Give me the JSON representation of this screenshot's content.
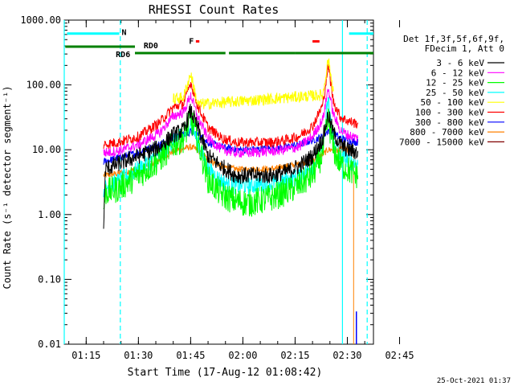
{
  "chart_data": {
    "type": "line",
    "title": "RHESSI Count Rates",
    "xlabel": "Start Time (17-Aug-12 01:08:42)",
    "ylabel": "Count Rate (s⁻¹ detector segment⁻¹)",
    "y_scale": "log",
    "ylim": [
      0.01,
      1000
    ],
    "xlim_minutes_after_01_00": [
      8.7,
      97.5
    ],
    "x_ticks": [
      {
        "t": 15,
        "label": "01:15"
      },
      {
        "t": 30,
        "label": "01:30"
      },
      {
        "t": 45,
        "label": "01:45"
      },
      {
        "t": 60,
        "label": "02:00"
      },
      {
        "t": 75,
        "label": "02:15"
      },
      {
        "t": 90,
        "label": "02:30"
      },
      {
        "t": 105,
        "label": "02:45"
      }
    ],
    "y_ticks": [
      {
        "v": 0.01,
        "label": "0.01"
      },
      {
        "v": 0.1,
        "label": "0.10"
      },
      {
        "v": 1,
        "label": "1.00"
      },
      {
        "v": 10,
        "label": "10.00"
      },
      {
        "v": 100,
        "label": "100.00"
      },
      {
        "v": 1000,
        "label": "1000.00"
      }
    ],
    "legend_header": [
      "Det 1f,3f,5f,6f,9f,",
      "FDecim 1, Att 0"
    ],
    "legend_position": "right",
    "series": [
      {
        "name": "3 - 6 keV",
        "color": "#000000",
        "values": [
          [
            20,
            0.6
          ],
          [
            20.5,
            5
          ],
          [
            24,
            6
          ],
          [
            30,
            8
          ],
          [
            36,
            11
          ],
          [
            40,
            17
          ],
          [
            43,
            20
          ],
          [
            45,
            40
          ],
          [
            47,
            22
          ],
          [
            50,
            8
          ],
          [
            54,
            5.5
          ],
          [
            58,
            4
          ],
          [
            62,
            4
          ],
          [
            68,
            4
          ],
          [
            72,
            4.5
          ],
          [
            76,
            5.5
          ],
          [
            80,
            8
          ],
          [
            83,
            15
          ],
          [
            84.5,
            35
          ],
          [
            86,
            18
          ],
          [
            88,
            12
          ],
          [
            90,
            10
          ],
          [
            93,
            9
          ]
        ]
      },
      {
        "name": "6 - 12 keV",
        "color": "#ff00ff",
        "values": [
          [
            20,
            9
          ],
          [
            24,
            9.5
          ],
          [
            30,
            12
          ],
          [
            36,
            18
          ],
          [
            40,
            33
          ],
          [
            43,
            38
          ],
          [
            45,
            70
          ],
          [
            47,
            32
          ],
          [
            50,
            15
          ],
          [
            54,
            10
          ],
          [
            58,
            9
          ],
          [
            62,
            9
          ],
          [
            68,
            9.5
          ],
          [
            72,
            10
          ],
          [
            76,
            11
          ],
          [
            80,
            16
          ],
          [
            83,
            30
          ],
          [
            84.5,
            90
          ],
          [
            86,
            35
          ],
          [
            88,
            20
          ],
          [
            90,
            17
          ],
          [
            93,
            15
          ]
        ]
      },
      {
        "name": "12 - 25 keV",
        "color": "#00ff00",
        "values": [
          [
            20,
            1.2
          ],
          [
            20.5,
            2.2
          ],
          [
            24,
            2.5
          ],
          [
            30,
            4
          ],
          [
            36,
            7
          ],
          [
            40,
            12
          ],
          [
            43,
            15
          ],
          [
            45,
            30
          ],
          [
            47,
            14
          ],
          [
            50,
            3.5
          ],
          [
            54,
            2
          ],
          [
            58,
            1.6
          ],
          [
            62,
            1.5
          ],
          [
            68,
            1.8
          ],
          [
            72,
            2.2
          ],
          [
            76,
            2.8
          ],
          [
            80,
            4
          ],
          [
            83,
            9
          ],
          [
            84.5,
            30
          ],
          [
            86,
            10
          ],
          [
            88,
            6
          ],
          [
            90,
            5
          ],
          [
            93,
            4
          ]
        ]
      },
      {
        "name": "25 - 50 keV",
        "color": "#00ffff",
        "values": [
          [
            20,
            2.5
          ],
          [
            24,
            3.2
          ],
          [
            30,
            5
          ],
          [
            36,
            8
          ],
          [
            40,
            14
          ],
          [
            43,
            16
          ],
          [
            45,
            28
          ],
          [
            47,
            13
          ],
          [
            50,
            5
          ],
          [
            54,
            3.2
          ],
          [
            58,
            2.8
          ],
          [
            62,
            2.8
          ],
          [
            68,
            3
          ],
          [
            72,
            3.3
          ],
          [
            76,
            3.8
          ],
          [
            80,
            5.5
          ],
          [
            83,
            12
          ],
          [
            84.5,
            60
          ],
          [
            86,
            14
          ],
          [
            88,
            8
          ],
          [
            90,
            7
          ],
          [
            93,
            6
          ]
        ]
      },
      {
        "name": "50 - 100 keV",
        "color": "#ffff00",
        "values": [
          [
            40,
            60
          ],
          [
            43,
            65
          ],
          [
            45,
            150
          ],
          [
            47,
            50
          ],
          [
            83,
            70
          ],
          [
            84.5,
            250
          ],
          [
            86,
            80
          ]
        ]
      },
      {
        "name": "100 - 300 keV",
        "color": "#ff0000",
        "values": [
          [
            20,
            12
          ],
          [
            24,
            13
          ],
          [
            30,
            16
          ],
          [
            36,
            26
          ],
          [
            40,
            45
          ],
          [
            43,
            52
          ],
          [
            45,
            110
          ],
          [
            47,
            48
          ],
          [
            50,
            22
          ],
          [
            54,
            15
          ],
          [
            58,
            13
          ],
          [
            62,
            13
          ],
          [
            68,
            13
          ],
          [
            72,
            14
          ],
          [
            76,
            16
          ],
          [
            80,
            23
          ],
          [
            83,
            50
          ],
          [
            84.5,
            200
          ],
          [
            86,
            55
          ],
          [
            88,
            32
          ],
          [
            90,
            28
          ],
          [
            93,
            25
          ]
        ]
      },
      {
        "name": "300 - 800 keV",
        "color": "#0000ff",
        "values": [
          [
            20,
            6.5
          ],
          [
            24,
            7.5
          ],
          [
            30,
            9
          ],
          [
            36,
            12
          ],
          [
            40,
            16
          ],
          [
            43,
            17
          ],
          [
            45,
            19
          ],
          [
            47,
            17
          ],
          [
            50,
            13
          ],
          [
            54,
            11
          ],
          [
            58,
            10
          ],
          [
            62,
            10
          ],
          [
            68,
            10.5
          ],
          [
            72,
            11
          ],
          [
            76,
            12
          ],
          [
            80,
            14
          ],
          [
            83,
            16
          ],
          [
            84.5,
            20
          ],
          [
            86,
            18
          ],
          [
            88,
            15
          ],
          [
            90,
            14
          ],
          [
            93,
            13
          ]
        ]
      },
      {
        "name": "800 - 7000 keV",
        "color": "#ff8000",
        "values": [
          [
            20,
            4
          ],
          [
            24,
            4.3
          ],
          [
            30,
            5
          ],
          [
            36,
            7
          ],
          [
            40,
            9.5
          ],
          [
            43,
            10.5
          ],
          [
            45,
            11
          ],
          [
            47,
            10
          ],
          [
            50,
            7
          ],
          [
            54,
            5.5
          ],
          [
            58,
            5
          ],
          [
            62,
            5
          ],
          [
            68,
            5
          ],
          [
            72,
            5.5
          ],
          [
            76,
            6
          ],
          [
            80,
            7
          ],
          [
            83,
            8.5
          ],
          [
            84.5,
            10
          ],
          [
            86,
            10
          ],
          [
            88,
            10
          ],
          [
            90,
            10
          ],
          [
            91.8,
            9
          ],
          [
            91.8,
            0.01
          ]
        ]
      },
      {
        "name": "7000 - 15000 keV",
        "color": "#800000",
        "values": []
      }
    ],
    "top_bars": [
      {
        "label": "N",
        "color": "#00ffff",
        "segments": [
          [
            9.5,
            24.5
          ],
          [
            90.5,
            97.5
          ]
        ]
      },
      {
        "label": "F",
        "color": "#ff0000",
        "segments": [
          [
            46.5,
            47.5
          ],
          [
            80,
            82
          ]
        ]
      },
      {
        "label": "RD6",
        "color": "#008000",
        "segments": [
          [
            9,
            29
          ]
        ]
      },
      {
        "label": "RD0",
        "color": "#008000",
        "segments": [
          [
            29,
            55
          ],
          [
            56,
            75
          ],
          [
            75,
            97.5
          ]
        ]
      }
    ],
    "vertical_markers": [
      {
        "t": 8.7,
        "color": "#00ffff",
        "style": "solid"
      },
      {
        "t": 24.8,
        "color": "#00ffff",
        "style": "dashed"
      },
      {
        "t": 88.6,
        "color": "#00ffff",
        "style": "solid"
      },
      {
        "t": 95.7,
        "color": "#00ffff",
        "style": "dashed"
      }
    ],
    "spikes": [
      {
        "t": 92.6,
        "color": "#0000ff",
        "values": [
          0.01,
          0.032
        ]
      }
    ]
  },
  "footer_timestamp": "25-Oct-2021 01:37"
}
